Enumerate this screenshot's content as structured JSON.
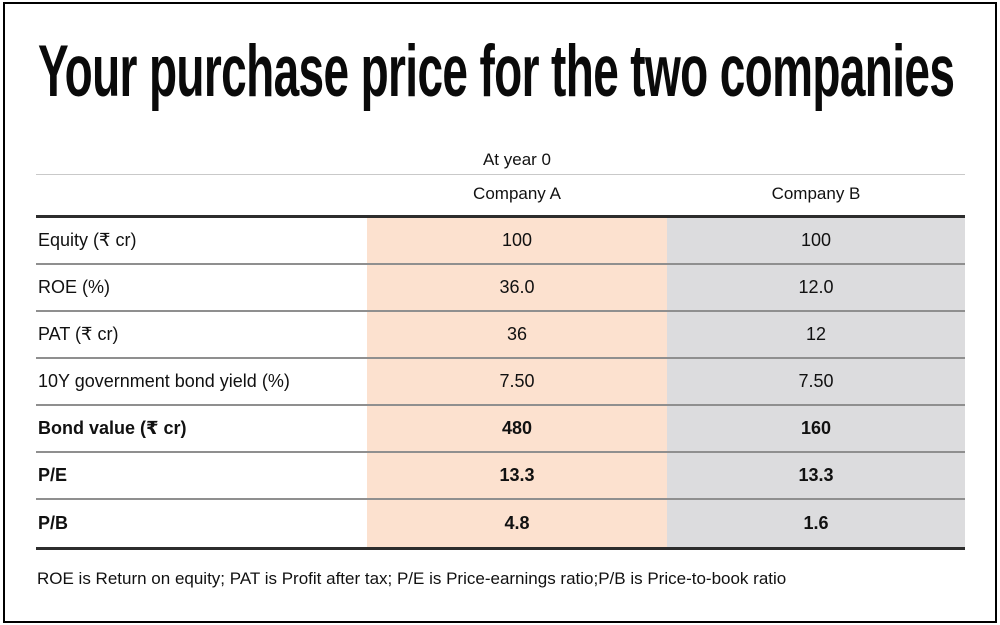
{
  "title": "Your purchase price for the two companies",
  "table": {
    "group_header": "At year 0",
    "columns": [
      "Company A",
      "Company B"
    ],
    "rows": [
      {
        "label": "Equity (₹ cr)",
        "company_a": "100",
        "company_b": "100"
      },
      {
        "label": "ROE (%)",
        "company_a": "36.0",
        "company_b": "12.0"
      },
      {
        "label": "PAT (₹ cr)",
        "company_a": "36",
        "company_b": "12"
      },
      {
        "label": "10Y government bond yield (%)",
        "company_a": "7.50",
        "company_b": "7.50"
      },
      {
        "label": "Bond value (₹ cr)",
        "company_a": "480",
        "company_b": "160"
      },
      {
        "label": "P/E",
        "company_a": "13.3",
        "company_b": "13.3"
      },
      {
        "label": "P/B",
        "company_a": "4.8",
        "company_b": "1.6"
      }
    ]
  },
  "footnote": "ROE is Return on equity; PAT is Profit after tax; P/E is Price-earnings ratio;P/B is Price-to-book ratio",
  "colors": {
    "company_a_bg": "#fce1cf",
    "company_b_bg": "#dcdcde",
    "heavy_rule": "#2d2d2d",
    "row_rule": "#8f8f8f",
    "light_rule": "#c9c9c9",
    "border": "#000000"
  },
  "chart_data": {
    "type": "table",
    "title": "Your purchase price for the two companies",
    "group_header": "At year 0",
    "columns": [
      "",
      "Company A",
      "Company B"
    ],
    "rows": [
      [
        "Equity (₹ cr)",
        100,
        100
      ],
      [
        "ROE (%)",
        36.0,
        12.0
      ],
      [
        "PAT (₹ cr)",
        36,
        12
      ],
      [
        "10Y government bond yield (%)",
        7.5,
        7.5
      ],
      [
        "Bond value (₹ cr)",
        480,
        160
      ],
      [
        "P/E",
        13.3,
        13.3
      ],
      [
        "P/B",
        4.8,
        1.6
      ]
    ],
    "bold_rows": [
      "Bond value (₹ cr)",
      "P/E",
      "P/B"
    ],
    "footnote": "ROE is Return on equity; PAT is Profit after tax; P/E is Price-earnings ratio;P/B is Price-to-book ratio"
  }
}
